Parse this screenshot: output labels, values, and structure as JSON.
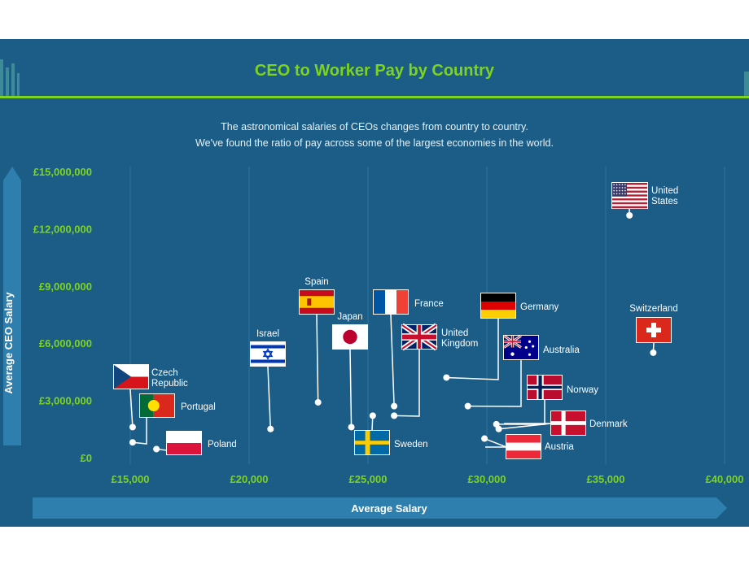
{
  "title": "CEO to Worker Pay by Country",
  "subtitle": [
    "The astronomical salaries of CEOs changes from country to country.",
    "We've found the ratio of pay across some of the largest economies in the world."
  ],
  "colors": {
    "background": "#1b5d86",
    "accent": "#7ed321",
    "text": "#ffffff"
  },
  "chart_data": {
    "type": "scatter",
    "title": "CEO to Worker Pay by Country",
    "xlabel": "Average Salary",
    "ylabel": "Average CEO Salary",
    "xlim": [
      14000,
      40000
    ],
    "ylim": [
      0,
      15000000
    ],
    "x_ticks": [
      15000,
      20000,
      25000,
      30000,
      35000,
      40000
    ],
    "x_tick_labels": [
      "£15,000",
      "£20,000",
      "£25,000",
      "£30,000",
      "£35,000",
      "£40,000"
    ],
    "y_ticks": [
      0,
      3000000,
      6000000,
      9000000,
      12000000,
      15000000
    ],
    "y_tick_labels": [
      "£0",
      "£3,000,000",
      "£6,000,000",
      "£9,000,000",
      "£12,000,000",
      "£15,000,000"
    ],
    "grid": "vertical",
    "points": [
      {
        "label": [
          "Czech",
          "Republic"
        ],
        "x": 15100,
        "y": 1600000,
        "flag": "czech-republic"
      },
      {
        "label": [
          "Portugal"
        ],
        "x": 15100,
        "y": 800000,
        "flag": "portugal"
      },
      {
        "label": [
          "Poland"
        ],
        "x": 16100,
        "y": 450000,
        "flag": "poland"
      },
      {
        "label": [
          "Israel"
        ],
        "x": 20900,
        "y": 1500000,
        "flag": "israel"
      },
      {
        "label": [
          "Spain"
        ],
        "x": 22900,
        "y": 2900000,
        "flag": "spain"
      },
      {
        "label": [
          "Japan"
        ],
        "x": 24300,
        "y": 1600000,
        "flag": "japan"
      },
      {
        "label": [
          "Sweden"
        ],
        "x": 25200,
        "y": 2200000,
        "flag": "sweden"
      },
      {
        "label": [
          "France"
        ],
        "x": 26100,
        "y": 2700000,
        "flag": "france"
      },
      {
        "label": [
          "United",
          "Kingdom"
        ],
        "x": 26100,
        "y": 2200000,
        "flag": "united-kingdom"
      },
      {
        "label": [
          "Germany"
        ],
        "x": 28300,
        "y": 4200000,
        "flag": "germany"
      },
      {
        "label": [
          "Australia"
        ],
        "x": 29200,
        "y": 2700000,
        "flag": "australia"
      },
      {
        "label": [
          "Norway"
        ],
        "x": 30400,
        "y": 1750000,
        "flag": "norway"
      },
      {
        "label": [
          "Denmark"
        ],
        "x": 30500,
        "y": 1500000,
        "flag": "denmark"
      },
      {
        "label": [
          "Austria"
        ],
        "x": 29900,
        "y": 1000000,
        "flag": "austria"
      },
      {
        "label": [
          "United",
          "States"
        ],
        "x": 36000,
        "y": 12700000,
        "flag": "united-states"
      },
      {
        "label": [
          "Switzerland"
        ],
        "x": 37000,
        "y": 5500000,
        "flag": "switzerland"
      }
    ]
  }
}
